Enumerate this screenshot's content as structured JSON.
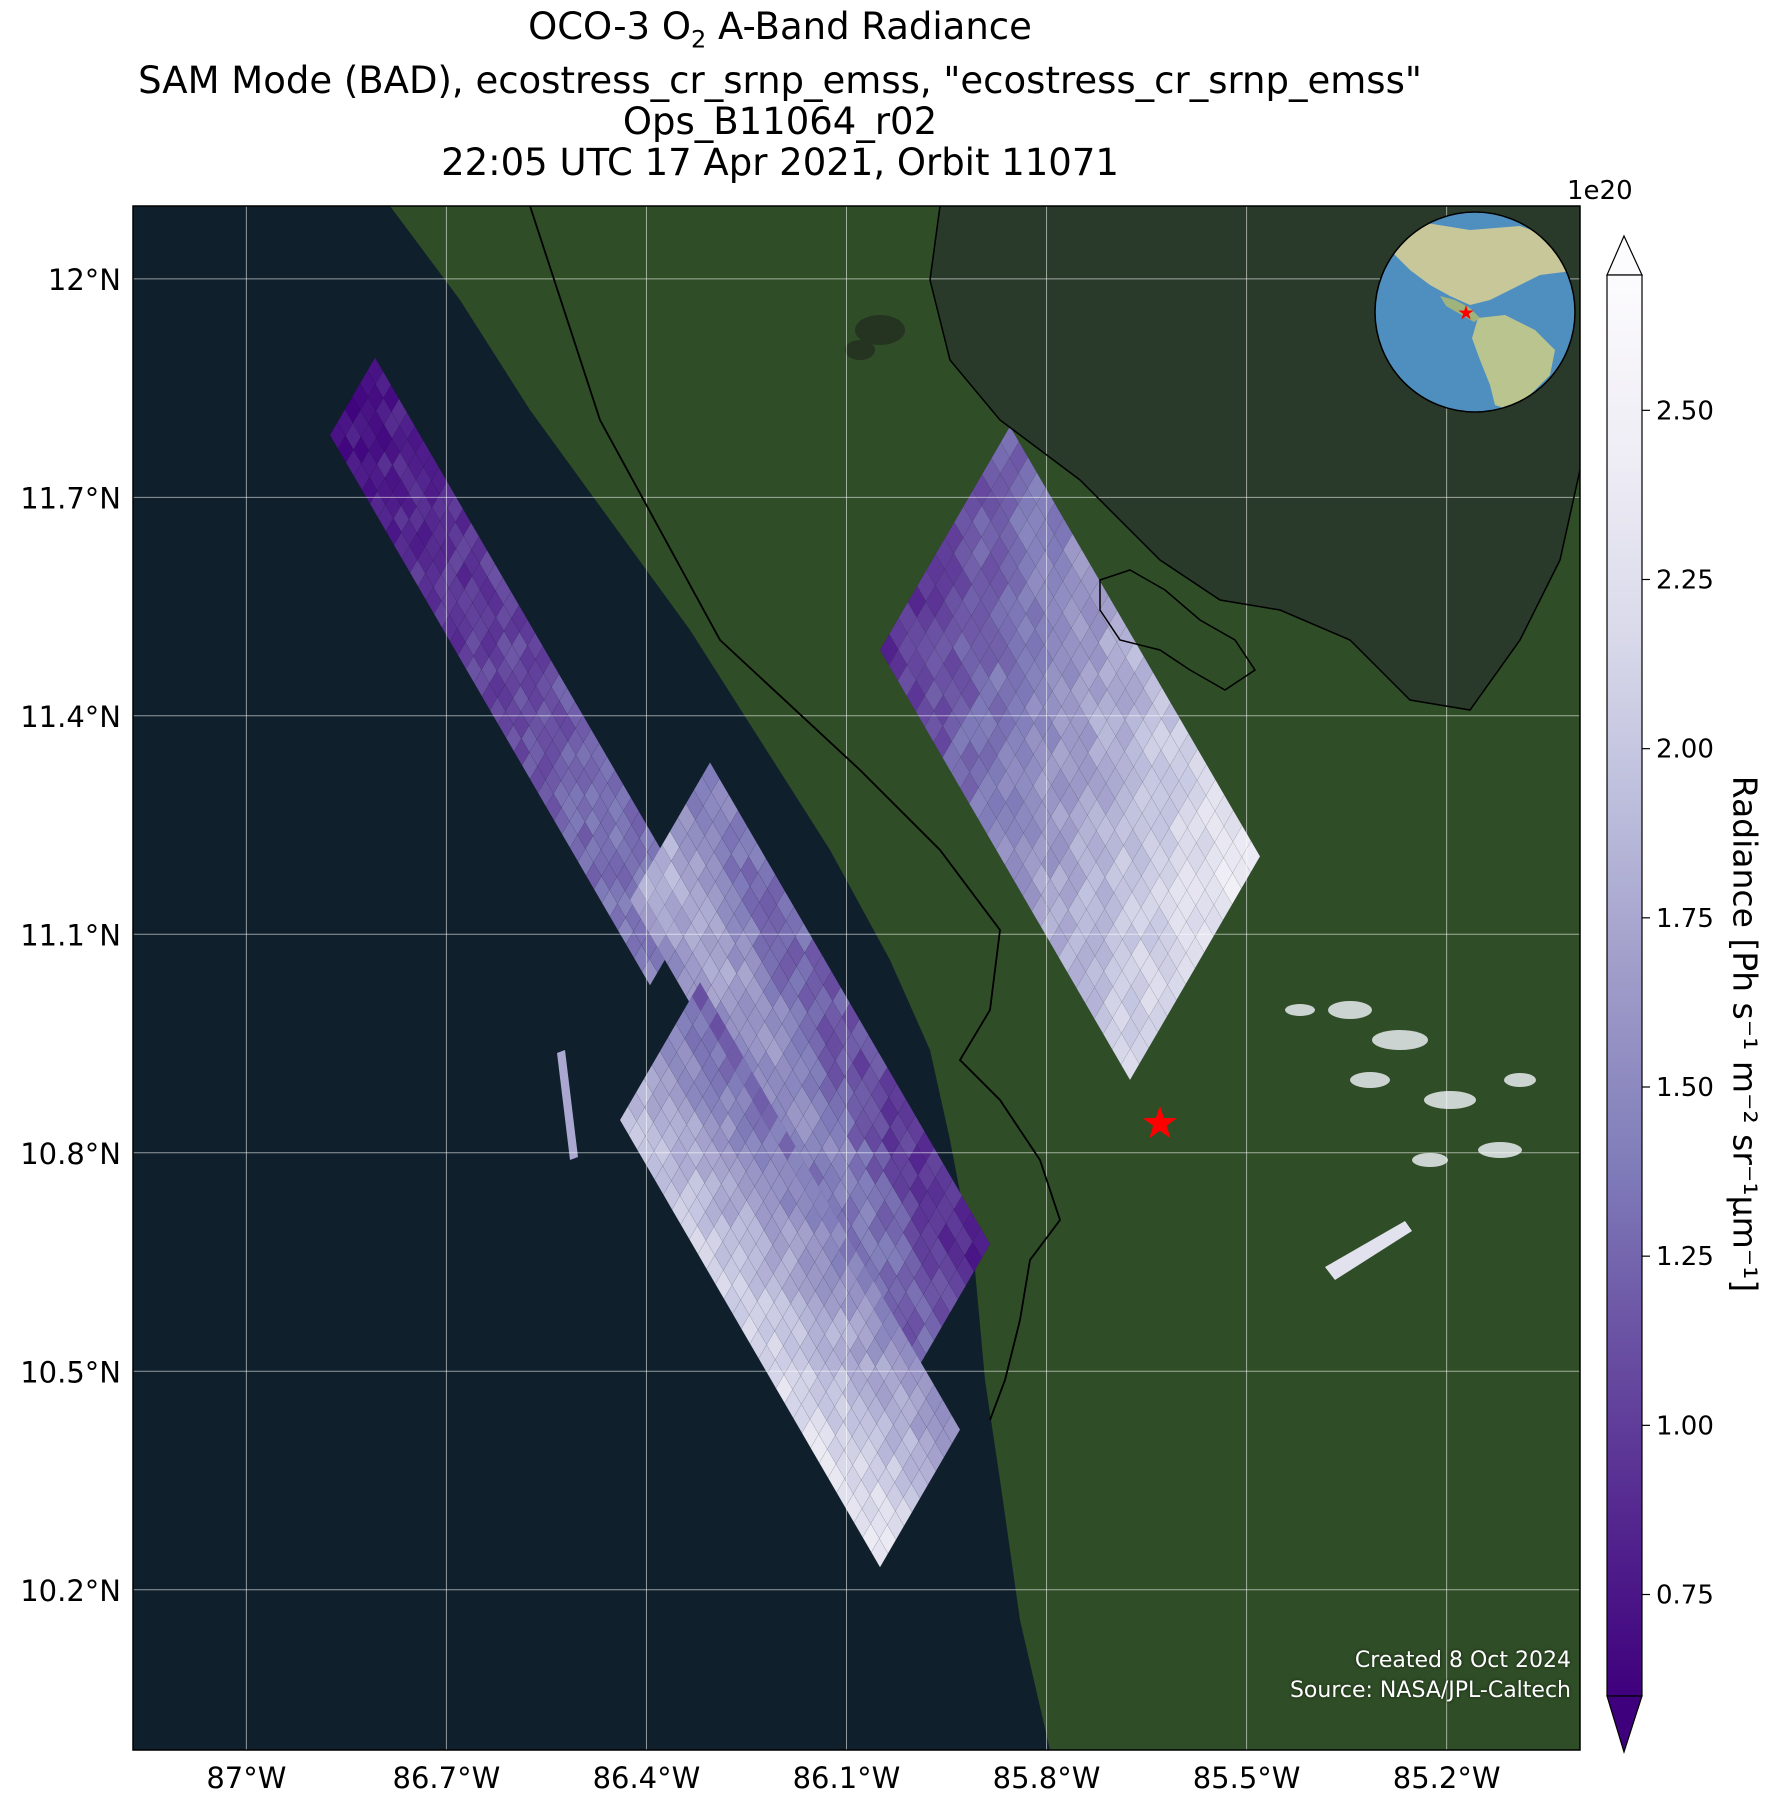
{
  "title": {
    "line1_prefix": "OCO-3 O",
    "line1_sub": "2",
    "line1_suffix": " A-Band Radiance",
    "line2": "SAM Mode (BAD), ecostress_cr_srnp_emss, \"ecostress_cr_srnp_emss\"",
    "line3": "Ops_B11064_r02",
    "line4": "22:05 UTC 17 Apr 2021, Orbit 11071"
  },
  "map": {
    "lon_range": [
      -87.17,
      -85.0
    ],
    "lat_range": [
      9.98,
      12.1
    ],
    "lat_ticks": [
      {
        "value": 12.0,
        "label": "12°N"
      },
      {
        "value": 11.7,
        "label": "11.7°N"
      },
      {
        "value": 11.4,
        "label": "11.4°N"
      },
      {
        "value": 11.1,
        "label": "11.1°N"
      },
      {
        "value": 10.8,
        "label": "10.8°N"
      },
      {
        "value": 10.5,
        "label": "10.5°N"
      },
      {
        "value": 10.2,
        "label": "10.2°N"
      }
    ],
    "lon_ticks": [
      {
        "value": -87.0,
        "label": "87°W"
      },
      {
        "value": -86.7,
        "label": "86.7°W"
      },
      {
        "value": -86.4,
        "label": "86.4°W"
      },
      {
        "value": -86.1,
        "label": "86.1°W"
      },
      {
        "value": -85.8,
        "label": "85.8°W"
      },
      {
        "value": -85.5,
        "label": "85.5°W"
      },
      {
        "value": -85.2,
        "label": "85.2°W"
      }
    ],
    "target_marker": {
      "lon": -85.63,
      "lat": 10.84
    },
    "colors": {
      "ocean": "#0f1f2c",
      "land": "#2f4d26",
      "lake": "#293a2a",
      "marker": "#ff0000"
    }
  },
  "colorbar": {
    "title": "Radiance [Ph s⁻¹ m⁻² sr⁻¹μm⁻¹]",
    "exponent": "1e20",
    "range": [
      0.6,
      2.7
    ],
    "ticks": [
      {
        "value": 0.75,
        "label": "0.75"
      },
      {
        "value": 1.0,
        "label": "1.00"
      },
      {
        "value": 1.25,
        "label": "1.25"
      },
      {
        "value": 1.5,
        "label": "1.50"
      },
      {
        "value": 1.75,
        "label": "1.75"
      },
      {
        "value": 2.0,
        "label": "2.00"
      },
      {
        "value": 2.25,
        "label": "2.25"
      },
      {
        "value": 2.5,
        "label": "2.50"
      }
    ],
    "colormap": "Purples_r",
    "colors": [
      "#3f007d",
      "#54278f",
      "#6a51a3",
      "#807dba",
      "#9e9ac8",
      "#bcbddc",
      "#dadaeb",
      "#efedf5",
      "#fcfbfd"
    ]
  },
  "watermark": {
    "created": "Created 8 Oct 2024",
    "source": "Source: NASA/JPL-Caltech"
  }
}
